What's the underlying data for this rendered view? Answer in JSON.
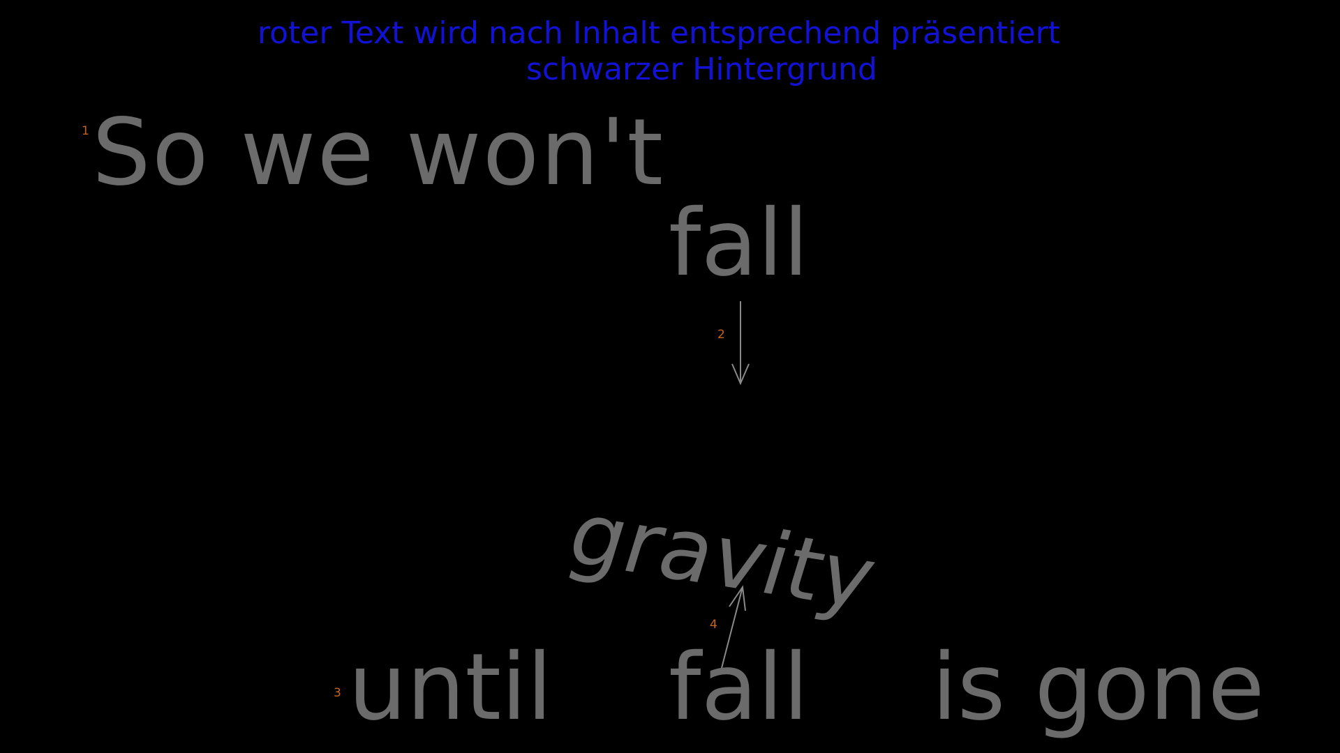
{
  "instructions": {
    "line1": "roter Text wird nach Inhalt entsprechend präsentiert",
    "line2": "schwarzer Hintergrund",
    "color": "#1212d6"
  },
  "lyrics": {
    "line1": "So we won't",
    "fall_top": "fall",
    "gravity": "gravity",
    "until": "until",
    "fall_bottom": "fall",
    "is_gone": "is gone",
    "color": "#6b6b6b"
  },
  "markers": {
    "m1": "1",
    "m2": "2",
    "m3": "3",
    "m4": "4",
    "color": "#c8651c"
  },
  "colors": {
    "background": "#000000",
    "arrow": "#8a8a8a"
  }
}
